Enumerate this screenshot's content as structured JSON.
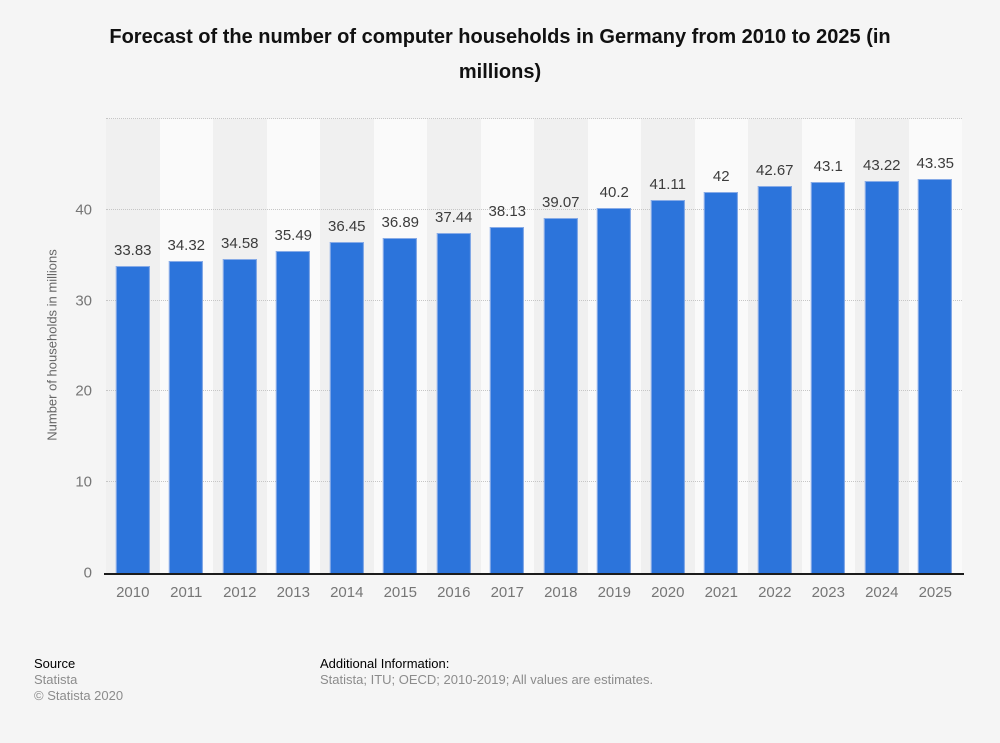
{
  "title": "Forecast of the number of computer households in Germany from 2010 to 2025 (in millions)",
  "chart_data": {
    "type": "bar",
    "title": "Forecast of the number of computer households in Germany from 2010 to 2025 (in millions)",
    "categories": [
      "2010",
      "2011",
      "2012",
      "2013",
      "2014",
      "2015",
      "2016",
      "2017",
      "2018",
      "2019",
      "2020",
      "2021",
      "2022",
      "2023",
      "2024",
      "2025"
    ],
    "values": [
      33.83,
      34.32,
      34.58,
      35.49,
      36.45,
      36.89,
      37.44,
      38.13,
      39.07,
      40.2,
      41.11,
      42,
      42.67,
      43.1,
      43.22,
      43.35
    ],
    "value_labels": [
      "33.83",
      "34.32",
      "34.58",
      "35.49",
      "36.45",
      "36.89",
      "37.44",
      "38.13",
      "39.07",
      "40.2",
      "41.11",
      "42",
      "42.67",
      "43.1",
      "43.22",
      "43.35"
    ],
    "xlabel": "",
    "ylabel": "Number of households in millions",
    "yticks": [
      0,
      10,
      20,
      30,
      40
    ],
    "ylim": [
      0,
      50
    ],
    "grid": "horizontal-dotted",
    "legend": "none",
    "colors": {
      "bar": "#2c74db",
      "band_dark": "#f0f0f0",
      "band_light": "#fafafa",
      "background": "#f5f5f5",
      "gridline": "#c6c6c6",
      "axis_line": "#1c1c1c"
    }
  },
  "footer": {
    "source_heading": "Source",
    "source_name": "Statista",
    "copyright": "© Statista 2020",
    "additional_heading": "Additional Information:",
    "additional_text": "Statista; ITU; OECD; 2010-2019; All values are estimates."
  }
}
